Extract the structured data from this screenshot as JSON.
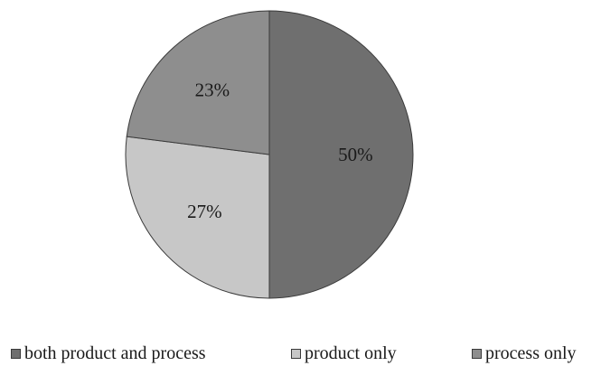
{
  "chart_data": {
    "type": "pie",
    "title": "",
    "slices": [
      {
        "name": "both product and process",
        "value": 50,
        "label": "50%",
        "color": "#6f6f6f"
      },
      {
        "name": "product only",
        "value": 27,
        "label": "27%",
        "color": "#c7c7c7"
      },
      {
        "name": "process only",
        "value": 23,
        "label": "23%",
        "color": "#8e8e8e"
      }
    ],
    "start": "12 o'clock",
    "direction": "clockwise",
    "legend_position": "bottom",
    "slice_border_color": "#3a3a3a"
  }
}
